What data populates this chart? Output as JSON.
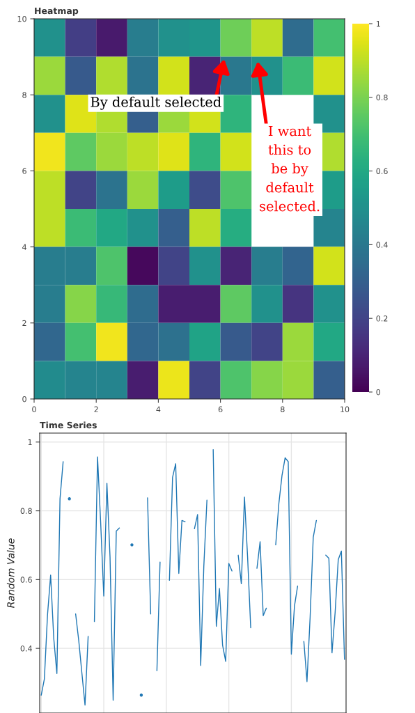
{
  "chart_data": [
    {
      "type": "heatmap",
      "title": "Heatmap",
      "xlim": [
        0,
        10
      ],
      "ylim": [
        0,
        10
      ],
      "xticks": [
        0,
        2,
        4,
        6,
        8,
        10
      ],
      "yticks": [
        0,
        2,
        4,
        6,
        8,
        10
      ],
      "clim": [
        0,
        1
      ],
      "cticks": [
        0,
        0.2,
        0.4,
        0.6,
        0.8,
        1
      ],
      "grid": false,
      "cells": [
        [
          0.5,
          0.18,
          0.07,
          0.42,
          0.5,
          0.52,
          0.78,
          0.9,
          0.35,
          0.7
        ],
        [
          0.85,
          0.28,
          0.88,
          0.38,
          0.93,
          0.1,
          0.4,
          0.5,
          0.68,
          0.93
        ],
        [
          0.5,
          0.95,
          0.88,
          0.3,
          0.85,
          0.93,
          0.65,
          null,
          null,
          0.5
        ],
        [
          0.98,
          0.75,
          0.85,
          0.9,
          0.95,
          0.65,
          0.93,
          null,
          null,
          0.88
        ],
        [
          0.9,
          0.2,
          0.38,
          0.85,
          0.55,
          0.23,
          0.72,
          null,
          null,
          0.55
        ],
        [
          0.9,
          0.68,
          0.6,
          0.5,
          0.3,
          0.9,
          0.62,
          null,
          null,
          0.45
        ],
        [
          0.42,
          0.42,
          0.72,
          0.02,
          0.2,
          0.5,
          0.1,
          0.42,
          0.32,
          0.93
        ],
        [
          0.42,
          0.82,
          0.67,
          0.35,
          0.08,
          0.08,
          0.75,
          0.5,
          0.15,
          0.5
        ],
        [
          0.33,
          0.7,
          0.98,
          0.33,
          0.37,
          0.58,
          0.28,
          0.2,
          0.85,
          0.6
        ],
        [
          0.48,
          0.45,
          0.45,
          0.08,
          0.97,
          0.2,
          0.72,
          0.82,
          0.85,
          0.3
        ]
      ],
      "annotations": [
        "By default selected",
        "I want\nthis to\nbe by\ndefault\nselected."
      ]
    },
    {
      "type": "line",
      "title": "Time Series",
      "ylabel": "Random Value",
      "grid": true,
      "tick_labels": "y",
      "categories": [
        null,
        null,
        null,
        null,
        null,
        null,
        null,
        null,
        null,
        null,
        null,
        null,
        null,
        null,
        null,
        null,
        null,
        null,
        null,
        null,
        null,
        null,
        null,
        null,
        null,
        null,
        null,
        null,
        null,
        null,
        null,
        null,
        null,
        null,
        null,
        null,
        null,
        null,
        null,
        null,
        null,
        null,
        null,
        null,
        null,
        null,
        null,
        null,
        null,
        null,
        null,
        null,
        null,
        null,
        null,
        null,
        null,
        null,
        null,
        null,
        null,
        null,
        null,
        null,
        null,
        null,
        null,
        null,
        null,
        null,
        null,
        null,
        null,
        null,
        null,
        null,
        null,
        null,
        null,
        null,
        null,
        null,
        null,
        null,
        null,
        null,
        null,
        null,
        null,
        null,
        null,
        null,
        null,
        null,
        null,
        null,
        null,
        null
      ],
      "ylim": [
        0.212,
        1.026
      ],
      "yticks": [
        0.4,
        0.6,
        0.8,
        1
      ],
      "series": [
        {
          "color": "#1f77b4",
          "values": [
            0.264,
            0.311,
            0.497,
            0.613,
            0.429,
            0.327,
            0.835,
            0.943,
            null,
            0.835,
            null,
            0.5,
            0.422,
            0.328,
            0.235,
            0.435,
            null,
            0.478,
            0.957,
            0.767,
            0.552,
            0.88,
            0.666,
            0.249,
            0.741,
            0.75,
            null,
            null,
            null,
            0.701,
            null,
            null,
            0.264,
            null,
            0.838,
            0.5,
            null,
            0.335,
            0.651,
            null,
            null,
            0.598,
            0.897,
            0.937,
            0.618,
            0.772,
            0.768,
            null,
            null,
            0.748,
            0.789,
            0.35,
            0.639,
            0.831,
            null,
            0.978,
            0.464,
            0.574,
            0.409,
            0.362,
            0.647,
            0.625,
            null,
            0.671,
            0.588,
            0.84,
            0.666,
            0.46,
            null,
            0.633,
            0.71,
            0.495,
            0.517,
            null,
            null,
            0.701,
            0.821,
            0.902,
            0.954,
            0.943,
            0.383,
            0.523,
            0.581,
            null,
            0.42,
            0.303,
            0.49,
            0.723,
            0.772,
            null,
            null,
            0.671,
            0.662,
            0.387,
            0.504,
            0.658,
            0.683,
            0.368
          ]
        }
      ]
    }
  ]
}
